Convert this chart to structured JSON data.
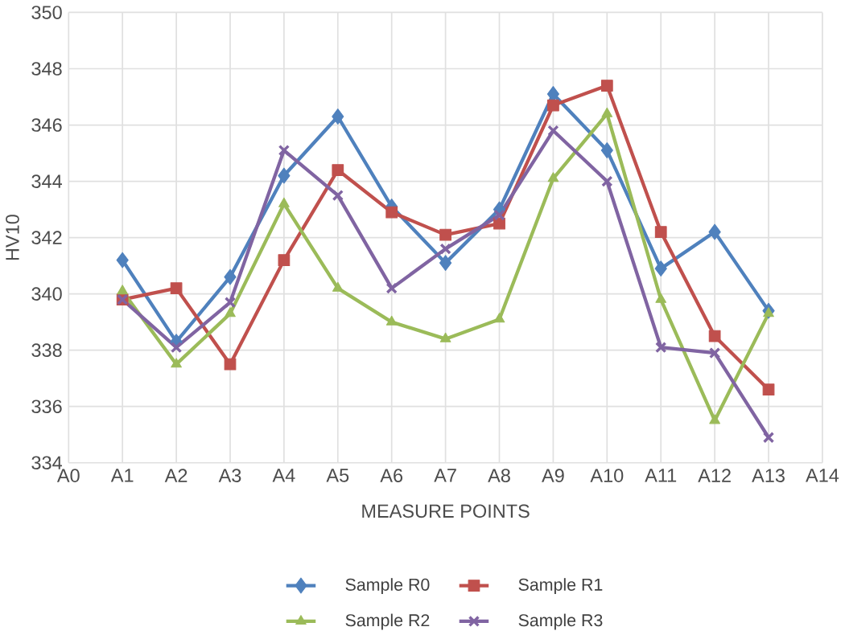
{
  "chart_data": {
    "type": "line",
    "xlabel": "MEASURE POINTS",
    "ylabel": "HV10",
    "categories": [
      "A0",
      "A1",
      "A2",
      "A3",
      "A4",
      "A5",
      "A6",
      "A7",
      "A8",
      "A9",
      "A10",
      "A11",
      "A12",
      "A13",
      "A14"
    ],
    "ylim": [
      334,
      350
    ],
    "yticks": [
      334,
      336,
      338,
      340,
      342,
      344,
      346,
      348,
      350
    ],
    "grid": true,
    "legend": "bottom",
    "series": [
      {
        "name": "Sample R0",
        "color": "#4f81bd",
        "marker": "diamond",
        "values": [
          null,
          341.2,
          338.3,
          340.6,
          344.2,
          346.3,
          343.1,
          341.1,
          343.0,
          347.1,
          345.1,
          340.9,
          342.2,
          339.4,
          null
        ]
      },
      {
        "name": "Sample R1",
        "color": "#c0504d",
        "marker": "square",
        "values": [
          null,
          339.8,
          340.2,
          337.5,
          341.2,
          344.4,
          342.9,
          342.1,
          342.5,
          346.7,
          347.4,
          342.2,
          338.5,
          336.6,
          null
        ]
      },
      {
        "name": "Sample R2",
        "color": "#9bbb59",
        "marker": "triangle",
        "values": [
          null,
          340.1,
          337.5,
          339.3,
          343.2,
          340.2,
          339.0,
          338.4,
          339.1,
          344.1,
          346.4,
          339.8,
          335.5,
          339.3,
          null
        ]
      },
      {
        "name": "Sample R3",
        "color": "#8064a2",
        "marker": "cross",
        "values": [
          null,
          339.8,
          338.1,
          339.7,
          345.1,
          343.5,
          340.2,
          341.6,
          342.8,
          345.8,
          344.0,
          338.1,
          337.9,
          334.9,
          null
        ]
      }
    ]
  }
}
